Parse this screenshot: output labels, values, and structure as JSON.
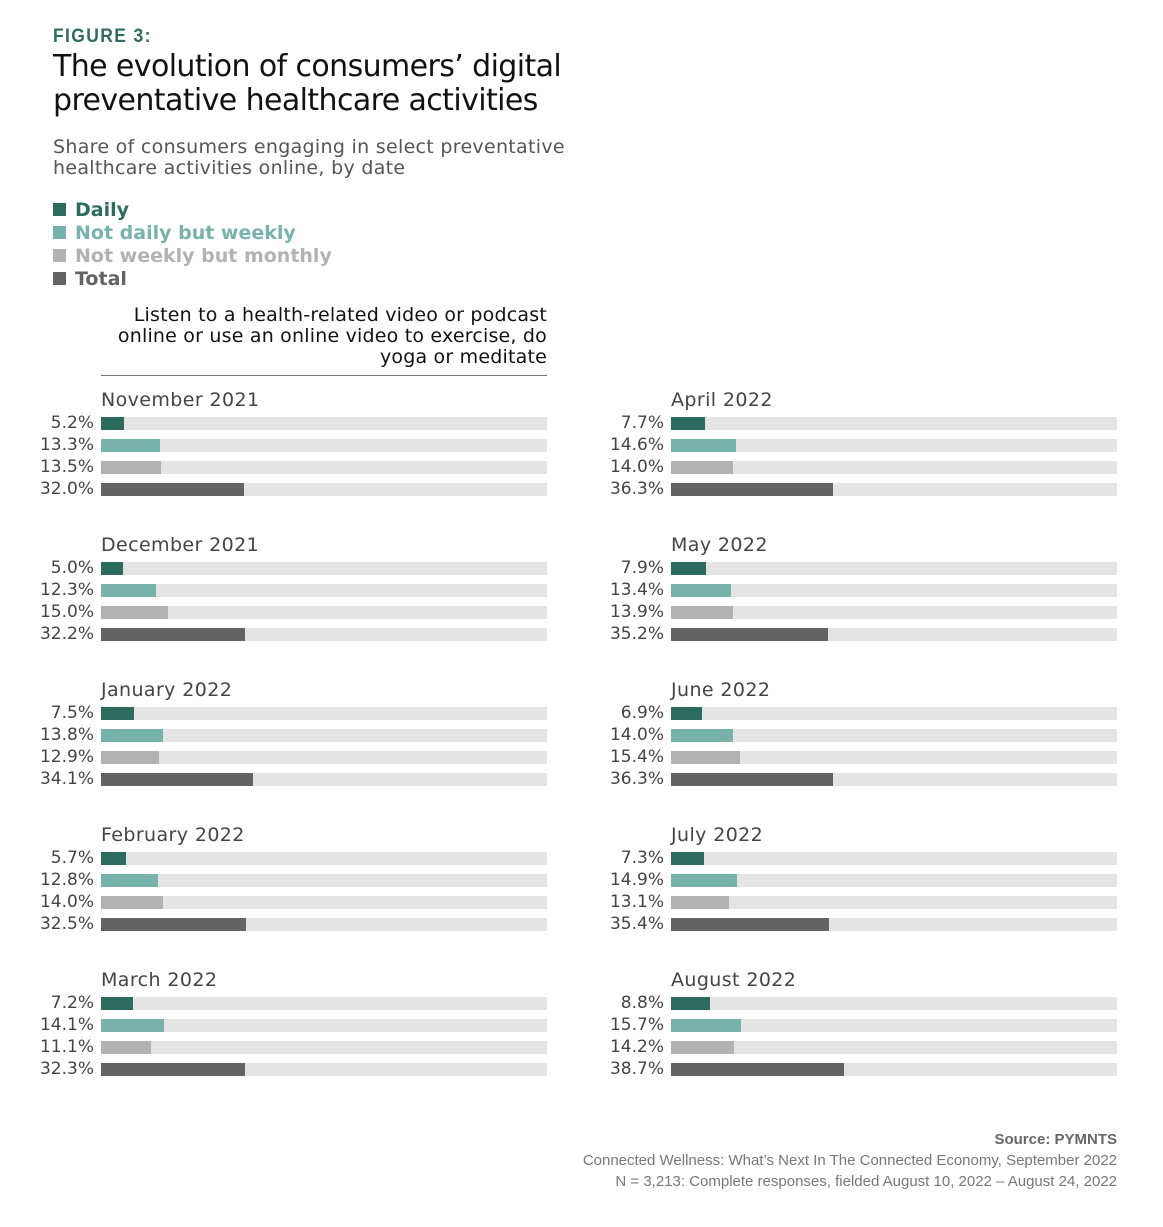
{
  "figure_label": "FIGURE 3:",
  "title": "The evolution of consumers’ digital preventative healthcare activities",
  "subtitle": "Share of consumers engaging in select preventative healthcare activities online, by date",
  "activity_title": "Listen to a health-related video or podcast online or use an online video to exercise, do yoga or meditate",
  "colors": {
    "daily": "#2e6b5f",
    "weekly": "#77b3ab",
    "monthly": "#b2b2b2",
    "total": "#636363",
    "track": "#e4e4e4",
    "figure_label": "#2f6b5e"
  },
  "legend": [
    {
      "key": "daily",
      "label": "Daily"
    },
    {
      "key": "weekly",
      "label": "Not daily but weekly"
    },
    {
      "key": "monthly",
      "label": "Not weekly but monthly"
    },
    {
      "key": "total",
      "label": "Total"
    }
  ],
  "chart_data": {
    "type": "bar",
    "orientation": "horizontal",
    "title": "The evolution of consumers’ digital preventative healthcare activities",
    "subtitle": "Share of consumers engaging in select preventative healthcare activities online, by date",
    "xlim": [
      0,
      100
    ],
    "unit": "%",
    "series_names": [
      "Daily",
      "Not daily but weekly",
      "Not weekly but monthly",
      "Total"
    ],
    "legend_position": "top-left",
    "panels": [
      {
        "date": "November 2021",
        "values": [
          5.2,
          13.3,
          13.5,
          32.0
        ],
        "labels": [
          "5.2%",
          "13.3%",
          "13.5%",
          "32.0%"
        ]
      },
      {
        "date": "December 2021",
        "values": [
          5.0,
          12.3,
          15.0,
          32.2
        ],
        "labels": [
          "5.0%",
          "12.3%",
          "15.0%",
          "32.2%"
        ]
      },
      {
        "date": "January 2022",
        "values": [
          7.5,
          13.8,
          12.9,
          34.1
        ],
        "labels": [
          "7.5%",
          "13.8%",
          "12.9%",
          "34.1%"
        ]
      },
      {
        "date": "February 2022",
        "values": [
          5.7,
          12.8,
          14.0,
          32.5
        ],
        "labels": [
          "5.7%",
          "12.8%",
          "14.0%",
          "32.5%"
        ]
      },
      {
        "date": "March 2022",
        "values": [
          7.2,
          14.1,
          11.1,
          32.3
        ],
        "labels": [
          "7.2%",
          "14.1%",
          "11.1%",
          "32.3%"
        ]
      },
      {
        "date": "April 2022",
        "values": [
          7.7,
          14.6,
          14.0,
          36.3
        ],
        "labels": [
          "7.7%",
          "14.6%",
          "14.0%",
          "36.3%"
        ]
      },
      {
        "date": "May 2022",
        "values": [
          7.9,
          13.4,
          13.9,
          35.2
        ],
        "labels": [
          "7.9%",
          "13.4%",
          "13.9%",
          "35.2%"
        ]
      },
      {
        "date": "June 2022",
        "values": [
          6.9,
          14.0,
          15.4,
          36.3
        ],
        "labels": [
          "6.9%",
          "14.0%",
          "15.4%",
          "36.3%"
        ]
      },
      {
        "date": "July 2022",
        "values": [
          7.3,
          14.9,
          13.1,
          35.4
        ],
        "labels": [
          "7.3%",
          "14.9%",
          "13.1%",
          "35.4%"
        ]
      },
      {
        "date": "August 2022",
        "values": [
          8.8,
          15.7,
          14.2,
          38.7
        ],
        "labels": [
          "8.8%",
          "15.7%",
          "14.2%",
          "38.7%"
        ]
      }
    ]
  },
  "source": {
    "heading": "Source: PYMNTS",
    "line1": "Connected Wellness: What’s Next In The Connected Economy, September 2022",
    "line2": "N = 3,213: Complete responses, fielded August 10, 2022 – August 24, 2022"
  }
}
